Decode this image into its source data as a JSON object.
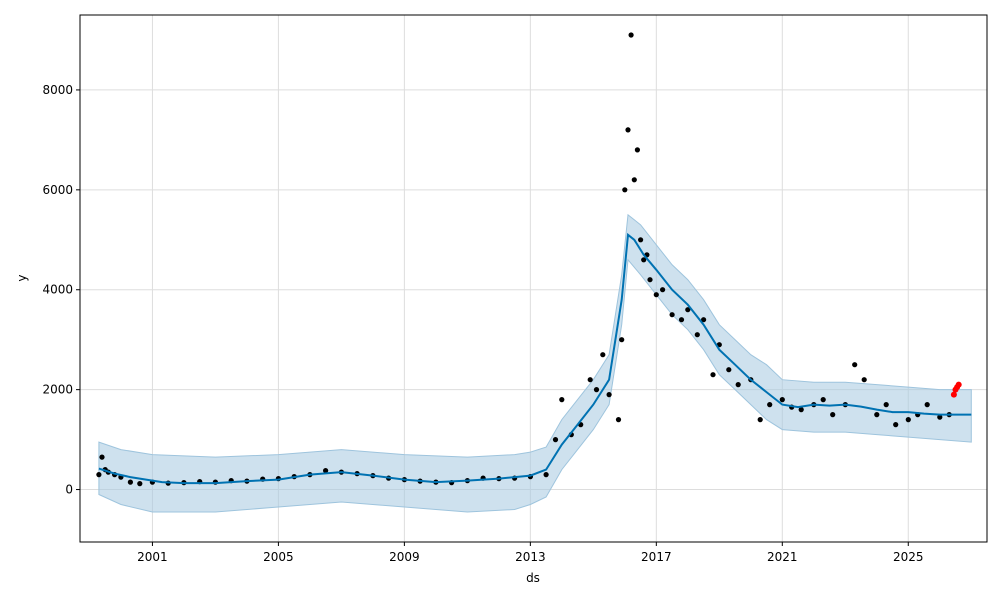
{
  "chart_data": {
    "type": "scatter",
    "title": "",
    "xlabel": "ds",
    "ylabel": "y",
    "xlim": [
      1998.7,
      2027.5
    ],
    "ylim": [
      -1050,
      9500
    ],
    "grid": true,
    "x_ticks": [
      2001,
      2005,
      2009,
      2013,
      2017,
      2021,
      2025
    ],
    "y_ticks": [
      0,
      2000,
      4000,
      6000,
      8000
    ],
    "x_tick_labels": [
      "2001",
      "2005",
      "2009",
      "2013",
      "2017",
      "2021",
      "2025"
    ],
    "y_tick_labels": [
      "0",
      "2000",
      "4000",
      "6000",
      "8000"
    ],
    "colors": {
      "observed": "#000000",
      "forecast": "#0072B2",
      "interval": "#a6c8e0",
      "interval_edge": "#9ec4dd",
      "recent": "#ff0000",
      "grid": "#dddddd"
    },
    "series": [
      {
        "kind": "observed_points",
        "x": [
          1999.3,
          1999.4,
          1999.5,
          1999.6,
          1999.8,
          2000.0,
          2000.3,
          2000.6,
          2001.0,
          2001.5,
          2002.0,
          2002.5,
          2003.0,
          2003.5,
          2004.0,
          2004.5,
          2005.0,
          2005.5,
          2006.0,
          2006.5,
          2007.0,
          2007.5,
          2008.0,
          2008.5,
          2009.0,
          2009.5,
          2010.0,
          2010.5,
          2011.0,
          2011.5,
          2012.0,
          2012.5,
          2013.0,
          2013.5,
          2013.8,
          2014.0,
          2014.3,
          2014.6,
          2014.9,
          2015.1,
          2015.3,
          2015.5,
          2015.8,
          2015.9,
          2016.0,
          2016.1,
          2016.2,
          2016.3,
          2016.4,
          2016.5,
          2016.6,
          2016.7,
          2016.8,
          2017.0,
          2017.2,
          2017.5,
          2017.8,
          2018.0,
          2018.3,
          2018.5,
          2018.8,
          2019.0,
          2019.3,
          2019.6,
          2020.0,
          2020.3,
          2020.6,
          2021.0,
          2021.3,
          2021.6,
          2022.0,
          2022.3,
          2022.6,
          2023.0,
          2023.3,
          2023.6,
          2024.0,
          2024.3,
          2024.6,
          2025.0,
          2025.3,
          2025.6,
          2026.0,
          2026.3
        ],
        "y": [
          300,
          650,
          400,
          350,
          300,
          250,
          150,
          120,
          150,
          130,
          140,
          160,
          150,
          180,
          170,
          210,
          220,
          260,
          300,
          380,
          350,
          320,
          280,
          230,
          200,
          170,
          150,
          140,
          180,
          230,
          220,
          230,
          260,
          300,
          1000,
          1800,
          1100,
          1300,
          2200,
          2000,
          2700,
          1900,
          1400,
          3000,
          6000,
          7200,
          9100,
          6200,
          6800,
          5000,
          4600,
          4700,
          4200,
          3900,
          4000,
          3500,
          3400,
          3600,
          3100,
          3400,
          2300,
          2900,
          2400,
          2100,
          2200,
          1400,
          1700,
          1800,
          1650,
          1600,
          1700,
          1800,
          1500,
          1700,
          2500,
          2200,
          1500,
          1700,
          1300,
          1400,
          1500,
          1700,
          1450,
          1500
        ]
      },
      {
        "kind": "forecast_line",
        "x": [
          1999.3,
          1999.8,
          2000.3,
          2000.8,
          2001.3,
          2002.0,
          2003.0,
          2004.0,
          2005.0,
          2006.0,
          2007.0,
          2008.0,
          2009.0,
          2010.0,
          2011.0,
          2012.0,
          2013.0,
          2013.5,
          2014.0,
          2014.5,
          2015.0,
          2015.5,
          2015.9,
          2016.1,
          2016.3,
          2016.6,
          2017.0,
          2017.5,
          2018.0,
          2018.5,
          2019.0,
          2019.5,
          2020.0,
          2020.5,
          2021.0,
          2021.5,
          2022.0,
          2022.5,
          2023.0,
          2023.5,
          2024.0,
          2024.5,
          2025.0,
          2025.5,
          2026.0,
          2026.5,
          2027.0
        ],
        "y": [
          420,
          320,
          250,
          200,
          150,
          130,
          130,
          170,
          200,
          300,
          350,
          280,
          200,
          150,
          180,
          220,
          280,
          400,
          900,
          1300,
          1700,
          2200,
          3800,
          5100,
          5000,
          4700,
          4400,
          4000,
          3700,
          3300,
          2800,
          2500,
          2200,
          1950,
          1700,
          1650,
          1700,
          1680,
          1700,
          1660,
          1600,
          1550,
          1550,
          1520,
          1500,
          1500,
          1500
        ]
      },
      {
        "kind": "interval_upper",
        "x": [
          1999.3,
          2000.0,
          2001.0,
          2003.0,
          2005.0,
          2007.0,
          2009.0,
          2011.0,
          2012.5,
          2013.0,
          2013.5,
          2014.0,
          2014.5,
          2015.0,
          2015.5,
          2015.9,
          2016.1,
          2016.5,
          2017.0,
          2017.5,
          2018.0,
          2018.5,
          2019.0,
          2019.5,
          2020.0,
          2020.5,
          2021.0,
          2022.0,
          2023.0,
          2024.0,
          2025.0,
          2026.0,
          2027.0
        ],
        "y": [
          950,
          800,
          700,
          650,
          700,
          800,
          700,
          650,
          700,
          750,
          850,
          1400,
          1800,
          2200,
          2700,
          4300,
          5500,
          5300,
          4900,
          4500,
          4200,
          3800,
          3300,
          3000,
          2700,
          2500,
          2200,
          2150,
          2150,
          2100,
          2050,
          2000,
          2000
        ]
      },
      {
        "kind": "interval_lower",
        "x": [
          1999.3,
          2000.0,
          2001.0,
          2003.0,
          2005.0,
          2007.0,
          2009.0,
          2011.0,
          2012.5,
          2013.0,
          2013.5,
          2014.0,
          2014.5,
          2015.0,
          2015.5,
          2015.9,
          2016.1,
          2016.5,
          2017.0,
          2017.5,
          2018.0,
          2018.5,
          2019.0,
          2019.5,
          2020.0,
          2020.5,
          2021.0,
          2022.0,
          2023.0,
          2024.0,
          2025.0,
          2026.0,
          2027.0
        ],
        "y": [
          -100,
          -300,
          -450,
          -450,
          -350,
          -250,
          -350,
          -450,
          -400,
          -300,
          -150,
          400,
          800,
          1200,
          1700,
          3300,
          4600,
          4300,
          3900,
          3500,
          3200,
          2800,
          2300,
          2000,
          1700,
          1400,
          1200,
          1150,
          1150,
          1100,
          1050,
          1000,
          950
        ]
      },
      {
        "kind": "recent_points",
        "x": [
          2026.45,
          2026.5,
          2026.55,
          2026.6
        ],
        "y": [
          1900,
          2000,
          2050,
          2100
        ]
      }
    ]
  }
}
